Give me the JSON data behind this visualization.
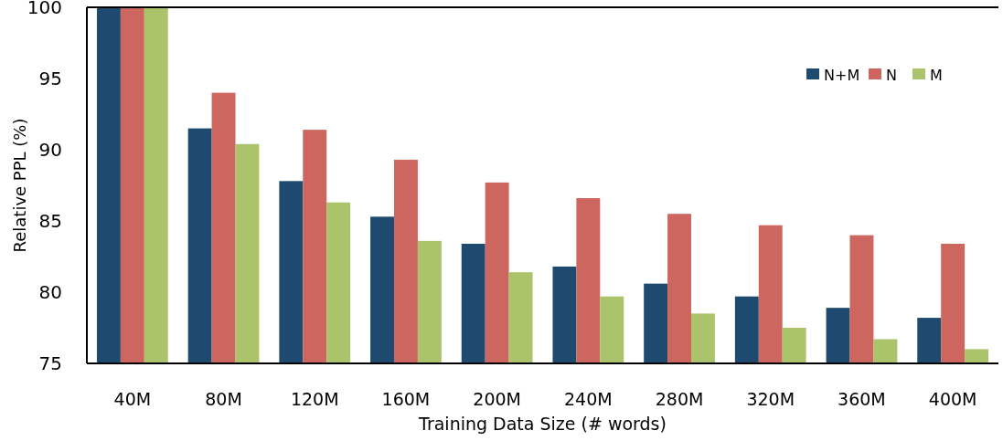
{
  "chart_data": {
    "type": "bar",
    "xlabel": "Training Data Size (# words)",
    "ylabel": "Relative PPL (%)",
    "categories": [
      "40M",
      "80M",
      "120M",
      "160M",
      "200M",
      "240M",
      "280M",
      "320M",
      "360M",
      "400M"
    ],
    "series": [
      {
        "name": "N+M",
        "color": "#1f4a70",
        "values": [
          100,
          91.5,
          87.8,
          85.3,
          83.4,
          81.8,
          80.6,
          79.7,
          78.9,
          78.2
        ]
      },
      {
        "name": "N",
        "color": "#cd665f",
        "values": [
          100,
          94.0,
          91.4,
          89.3,
          87.7,
          86.6,
          85.5,
          84.7,
          84.0,
          83.4
        ]
      },
      {
        "name": "M",
        "color": "#abc46b",
        "values": [
          100,
          90.4,
          86.3,
          83.6,
          81.4,
          79.7,
          78.5,
          77.5,
          76.7,
          76.0
        ]
      }
    ],
    "ylim": [
      75,
      100
    ],
    "yticks": [
      75,
      80,
      85,
      90,
      95,
      100
    ],
    "grid": false,
    "legend": "top right"
  }
}
